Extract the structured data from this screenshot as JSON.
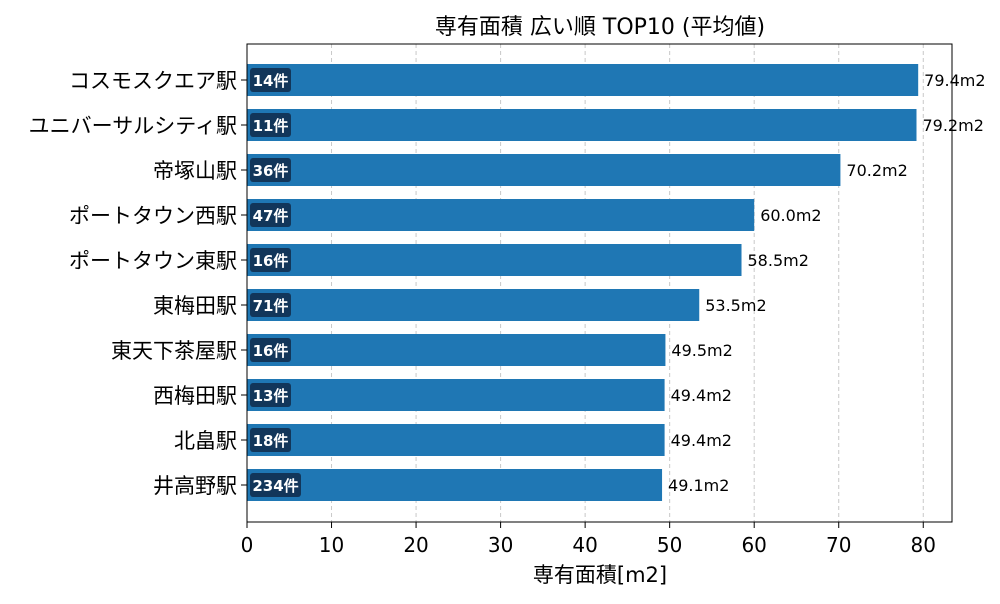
{
  "chart_data": {
    "type": "bar",
    "orientation": "horizontal",
    "title": "専有面積 広い順 TOP10 (平均値)",
    "xlabel": "専有面積[m2]",
    "ylabel": "",
    "xlim": [
      0,
      83.4
    ],
    "xticks": [
      0,
      10,
      20,
      30,
      40,
      50,
      60,
      70,
      80
    ],
    "grid": "vertical dashed",
    "bar_color": "#1f77b4",
    "badge_color": "#12365a",
    "categories": [
      "コスモスクエア駅",
      "ユニバーサルシティ駅",
      "帝塚山駅",
      "ポートタウン西駅",
      "ポートタウン東駅",
      "東梅田駅",
      "東天下茶屋駅",
      "西梅田駅",
      "北畠駅",
      "井高野駅"
    ],
    "values": [
      79.4,
      79.2,
      70.2,
      60.0,
      58.5,
      53.5,
      49.5,
      49.4,
      49.4,
      49.1
    ],
    "value_labels": [
      "79.4m2",
      "79.2m2",
      "70.2m2",
      "60.0m2",
      "58.5m2",
      "53.5m2",
      "49.5m2",
      "49.4m2",
      "49.4m2",
      "49.1m2"
    ],
    "counts": [
      "14件",
      "11件",
      "36件",
      "47件",
      "16件",
      "71件",
      "16件",
      "13件",
      "18件",
      "234件"
    ]
  }
}
